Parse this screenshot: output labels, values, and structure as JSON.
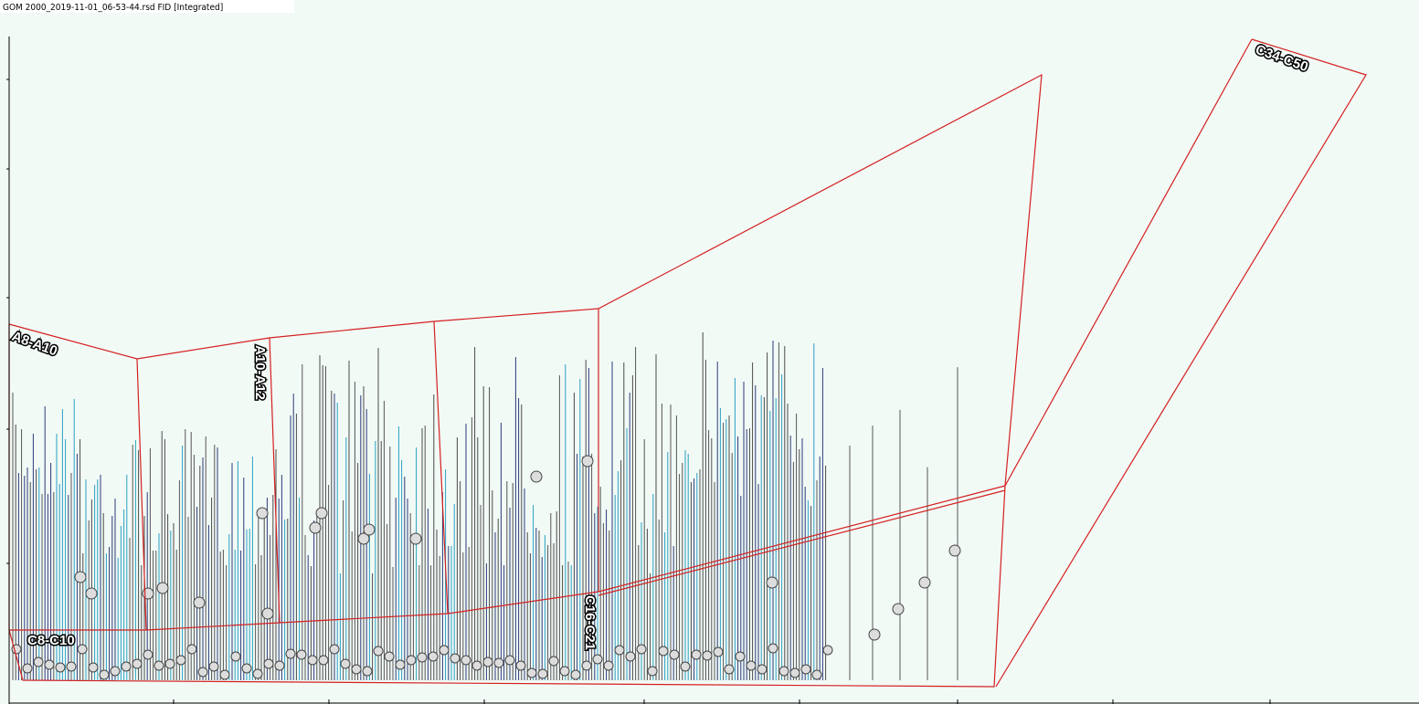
{
  "title": "GOM 2000_2019-11-01_06-53-44.rsd FID [Integrated]",
  "regions": [
    {
      "label": "A8-A10"
    },
    {
      "label": "A10-A12"
    },
    {
      "label": "C8-C10"
    },
    {
      "label": "C16-C21"
    },
    {
      "label": "C34-C50"
    }
  ]
}
